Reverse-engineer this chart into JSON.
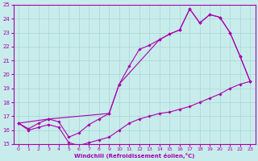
{
  "xlabel": "Windchill (Refroidissement éolien,°C)",
  "xlim": [
    -0.5,
    23.5
  ],
  "ylim": [
    15,
    25
  ],
  "xticks": [
    0,
    1,
    2,
    3,
    4,
    5,
    6,
    7,
    8,
    9,
    10,
    11,
    12,
    13,
    14,
    15,
    16,
    17,
    18,
    19,
    20,
    21,
    22,
    23
  ],
  "yticks": [
    15,
    16,
    17,
    18,
    19,
    20,
    21,
    22,
    23,
    24,
    25
  ],
  "bg_color": "#c8ecec",
  "grid_color": "#aad4d4",
  "line_color": "#aa00aa",
  "line1_x": [
    0,
    1,
    2,
    3,
    4,
    5,
    6,
    7,
    8,
    9,
    10,
    11,
    12,
    13,
    14,
    15,
    16,
    17,
    18,
    19,
    20,
    21,
    22,
    23
  ],
  "line1_y": [
    16.5,
    16.0,
    16.2,
    16.4,
    16.2,
    15.1,
    14.9,
    15.1,
    15.3,
    15.5,
    16.0,
    16.5,
    16.8,
    17.0,
    17.2,
    17.3,
    17.5,
    17.7,
    18.0,
    18.3,
    18.6,
    19.0,
    19.3,
    19.5
  ],
  "line2_x": [
    0,
    1,
    2,
    3,
    4,
    5,
    6,
    7,
    8,
    9,
    10,
    11,
    12,
    13,
    14,
    15,
    16,
    17,
    18,
    19,
    20,
    21,
    22,
    23
  ],
  "line2_y": [
    16.5,
    16.1,
    16.5,
    16.8,
    16.6,
    15.5,
    15.8,
    16.4,
    16.8,
    17.2,
    19.3,
    20.6,
    21.8,
    22.1,
    22.5,
    22.9,
    23.2,
    24.7,
    23.7,
    24.3,
    24.1,
    23.0,
    21.3,
    19.5
  ],
  "line3_x": [
    0,
    3,
    9,
    10,
    14,
    15,
    16,
    17,
    18,
    19,
    20,
    21,
    22,
    23
  ],
  "line3_y": [
    16.5,
    16.8,
    17.2,
    19.3,
    22.5,
    22.9,
    23.2,
    24.7,
    23.7,
    24.3,
    24.1,
    23.0,
    21.3,
    19.5
  ]
}
